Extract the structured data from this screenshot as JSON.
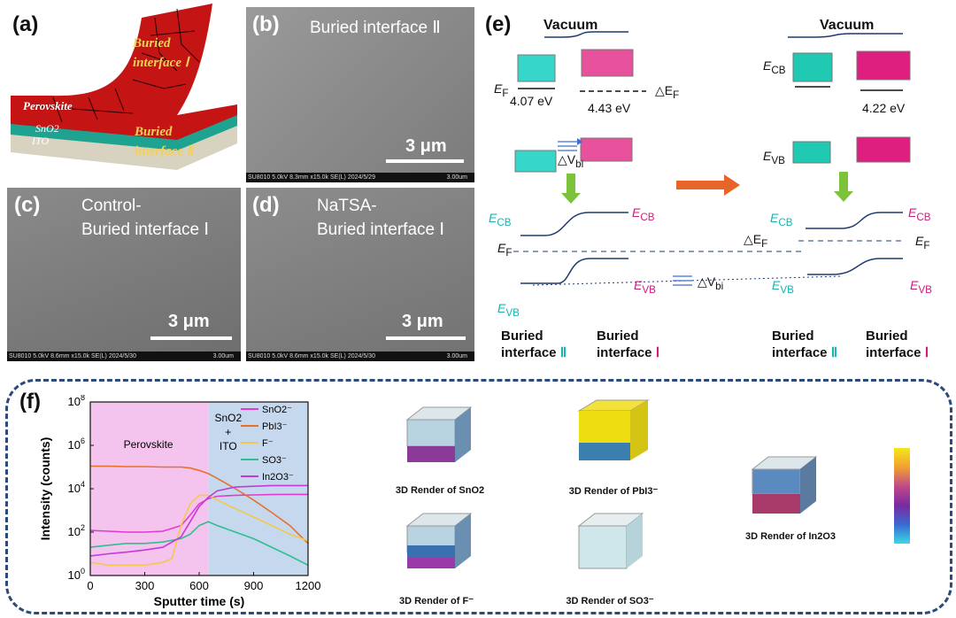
{
  "panels": {
    "a": {
      "label": "(a)",
      "layers": [
        "Perovskite",
        "SnO2",
        "ITO"
      ],
      "interfaces": [
        "Buried interface Ⅰ",
        "Buried interface Ⅱ"
      ]
    },
    "b": {
      "label": "(b)",
      "title": "Buried interface Ⅱ",
      "scale": "3 μm",
      "footer": "SU8010 5.0kV 8.3mm x15.0k SE(L) 2024/5/29",
      "footer_right": "3.00um"
    },
    "c": {
      "label": "(c)",
      "title1": "Control-",
      "title2": "Buried interface Ⅰ",
      "scale": "3 μm",
      "footer": "SU8010 5.0kV 8.6mm x15.0k SE(L) 2024/5/30",
      "footer_right": "3.00um"
    },
    "d": {
      "label": "(d)",
      "title1": "NaTSA-",
      "title2": "Buried interface Ⅰ",
      "scale": "3 μm",
      "footer": "SU8010 5.0kV 8.6mm x15.0k SE(L) 2024/5/30",
      "footer_right": "3.00um"
    },
    "e": {
      "label": "(e)",
      "vacuum": "Vacuum",
      "ef": "E",
      "ef_sub": "F",
      "ecb": "E",
      "ecb_sub": "CB",
      "evb": "E",
      "evb_sub": "VB",
      "v1": "4.07 eV",
      "v2": "4.43 eV",
      "v3": "4.22 eV",
      "delta_ef": "△E",
      "delta_v": "△V",
      "delta_v_sub": "bi",
      "bottom_left": [
        "Buried",
        "interface",
        "Ⅱ"
      ],
      "bottom_right": [
        "Buried",
        "interface",
        "Ⅰ"
      ]
    },
    "f": {
      "label": "(f)",
      "region1": "Perovskite",
      "region2_lines": [
        "SnO2",
        "+",
        "ITO"
      ],
      "renders": [
        "3D Render of SnO2",
        "3D Render of PbI3⁻",
        "3D Render of F⁻",
        "3D Render of SO3⁻",
        "3D Render of In2O3"
      ]
    }
  },
  "colors": {
    "teal": "#1ab3b0",
    "magenta": "#cc1f7c",
    "navy": "#1f3a6e",
    "arrow_green": "#7cc23a",
    "arrow_orange": "#e8652a"
  },
  "chart_data": {
    "type": "line",
    "xlabel": "Sputter time (s)",
    "ylabel": "Intensity (counts)",
    "xlim": [
      0,
      1200
    ],
    "ylim_log10": [
      0,
      8
    ],
    "xticks": [
      "0",
      "300",
      "600",
      "900",
      "1200"
    ],
    "yticks": [
      "10^0",
      "10^2",
      "10^4",
      "10^6",
      "10^8"
    ],
    "legend_position": "top-right",
    "series": [
      {
        "name": "SnO2⁻",
        "color": "#e23ad0",
        "x": [
          0,
          100,
          200,
          300,
          400,
          500,
          550,
          600,
          650,
          700,
          800,
          900,
          1000,
          1100,
          1200
        ],
        "y": [
          120,
          110,
          100,
          100,
          110,
          200,
          600,
          2000,
          3500,
          4500,
          5000,
          5200,
          5400,
          5500,
          5500
        ]
      },
      {
        "name": "PbI3⁻",
        "color": "#e8702a",
        "x": [
          0,
          100,
          200,
          300,
          400,
          500,
          550,
          600,
          650,
          700,
          800,
          900,
          1000,
          1100,
          1200
        ],
        "y": [
          110000,
          110000,
          105000,
          105000,
          100000,
          100000,
          90000,
          70000,
          50000,
          30000,
          10000,
          3000,
          800,
          200,
          30
        ]
      },
      {
        "name": "F⁻",
        "color": "#f2c94c",
        "x": [
          0,
          100,
          200,
          300,
          400,
          450,
          500,
          550,
          600,
          650,
          700,
          800,
          900,
          1000,
          1100,
          1200
        ],
        "y": [
          4,
          3,
          3,
          3,
          4,
          6,
          200,
          2000,
          5000,
          5000,
          3000,
          1200,
          500,
          200,
          80,
          40
        ]
      },
      {
        "name": "SO3⁻",
        "color": "#2fbf8f",
        "x": [
          0,
          100,
          200,
          300,
          400,
          500,
          550,
          600,
          650,
          700,
          800,
          900,
          1000,
          1100,
          1200
        ],
        "y": [
          20,
          25,
          30,
          30,
          35,
          50,
          80,
          200,
          300,
          200,
          100,
          50,
          20,
          8,
          3
        ]
      },
      {
        "name": "In2O3⁻",
        "color": "#c43ad8",
        "x": [
          0,
          100,
          200,
          300,
          400,
          500,
          550,
          600,
          650,
          700,
          800,
          900,
          1000,
          1100,
          1200
        ],
        "y": [
          8,
          10,
          12,
          15,
          20,
          60,
          300,
          1500,
          4000,
          8000,
          12000,
          13000,
          14000,
          14000,
          14000
        ]
      }
    ]
  }
}
